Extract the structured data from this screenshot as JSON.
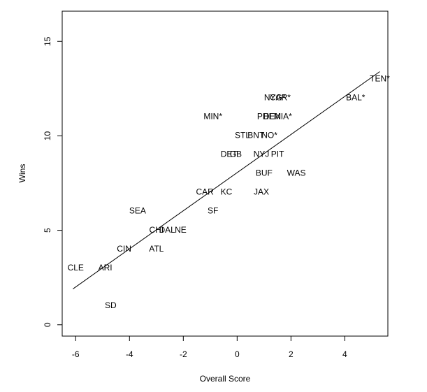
{
  "chart_data": {
    "type": "scatter",
    "title": "",
    "xlabel": "Overall Score",
    "ylabel": "Wins",
    "xlim": [
      -6.5,
      5.6
    ],
    "ylim": [
      -0.6,
      16.6
    ],
    "xticks": [
      -6,
      -4,
      -2,
      0,
      2,
      4
    ],
    "yticks": [
      0,
      5,
      10,
      15
    ],
    "xtick_labels": [
      "-6",
      "-4",
      "-2",
      "0",
      "2",
      "4"
    ],
    "ytick_labels": [
      "0",
      "5",
      "10",
      "15"
    ],
    "grid": false,
    "marker": "text-labels",
    "points": [
      {
        "label": "TEN*",
        "x": 5.3,
        "y": 13
      },
      {
        "label": "BAL*",
        "x": 4.4,
        "y": 12
      },
      {
        "label": "NYG*",
        "x": 1.4,
        "y": 12
      },
      {
        "label": "CAR*",
        "x": 1.6,
        "y": 12
      },
      {
        "label": "MIN*",
        "x": -0.9,
        "y": 11
      },
      {
        "label": "PHI",
        "x": 1.0,
        "y": 11
      },
      {
        "label": "DEN",
        "x": 1.3,
        "y": 11
      },
      {
        "label": "MIA*",
        "x": 1.7,
        "y": 11
      },
      {
        "label": "STL",
        "x": 0.2,
        "y": 10
      },
      {
        "label": "BNT",
        "x": 0.7,
        "y": 10
      },
      {
        "label": "NO*",
        "x": 1.2,
        "y": 10
      },
      {
        "label": "DET",
        "x": -0.3,
        "y": 9
      },
      {
        "label": "GB",
        "x": -0.05,
        "y": 9
      },
      {
        "label": "NYJ",
        "x": 0.9,
        "y": 9
      },
      {
        "label": "PIT",
        "x": 1.5,
        "y": 9
      },
      {
        "label": "BUF",
        "x": 1.0,
        "y": 8
      },
      {
        "label": "WAS",
        "x": 2.2,
        "y": 8
      },
      {
        "label": "CAR",
        "x": -1.2,
        "y": 7
      },
      {
        "label": "KC",
        "x": -0.4,
        "y": 7
      },
      {
        "label": "JAX",
        "x": 0.9,
        "y": 7
      },
      {
        "label": "SEA",
        "x": -3.7,
        "y": 6
      },
      {
        "label": "SF",
        "x": -0.9,
        "y": 6
      },
      {
        "label": "CHI",
        "x": -3.0,
        "y": 5
      },
      {
        "label": "DAL",
        "x": -2.6,
        "y": 5
      },
      {
        "label": "NE",
        "x": -2.1,
        "y": 5
      },
      {
        "label": "CIN",
        "x": -4.2,
        "y": 4
      },
      {
        "label": "ATL",
        "x": -3.0,
        "y": 4
      },
      {
        "label": "CLE",
        "x": -6.0,
        "y": 3
      },
      {
        "label": "ARI",
        "x": -4.9,
        "y": 3
      },
      {
        "label": "SD",
        "x": -4.7,
        "y": 1
      }
    ],
    "fit_line": {
      "x": [
        -6.1,
        5.3
      ],
      "y": [
        1.9,
        13.4
      ]
    }
  }
}
